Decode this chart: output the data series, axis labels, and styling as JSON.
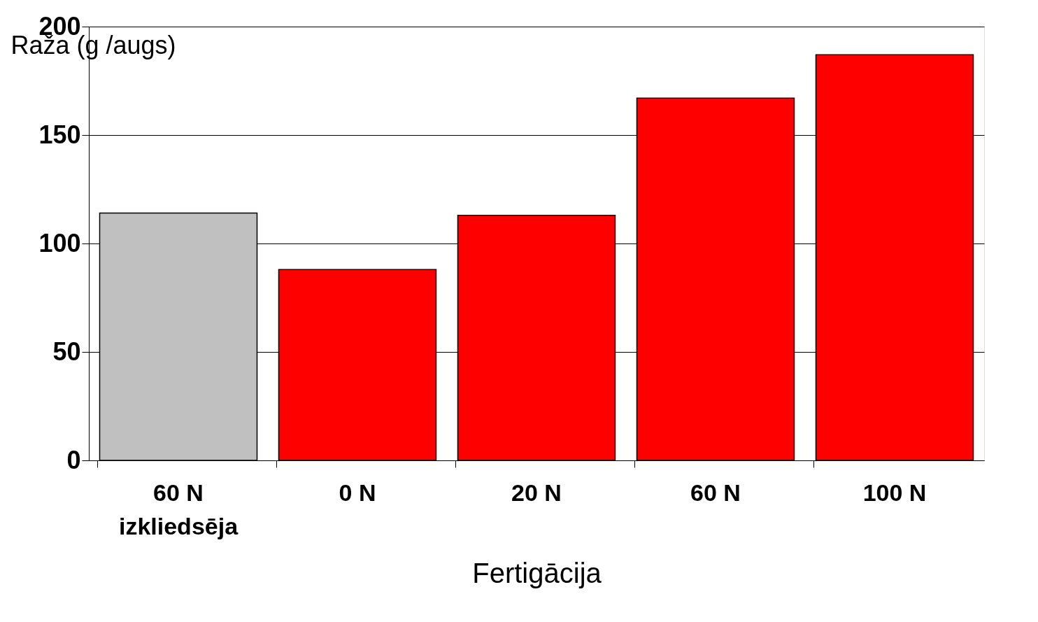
{
  "chart_data": {
    "type": "bar",
    "categories": [
      "60 N\nizkliedsēja",
      "0 N",
      "20 N",
      "60 N",
      "100 N"
    ],
    "values": [
      114,
      88,
      113,
      167,
      187
    ],
    "colors": [
      "#c0c0c0",
      "#ff0000",
      "#ff0000",
      "#ff0000",
      "#ff0000"
    ],
    "xlabel": "Fertigācija",
    "ylabel": "Raža (g /augs)",
    "ylim": [
      0,
      200
    ],
    "yticks": [
      0,
      50,
      100,
      150,
      200
    ],
    "grid": "y"
  }
}
